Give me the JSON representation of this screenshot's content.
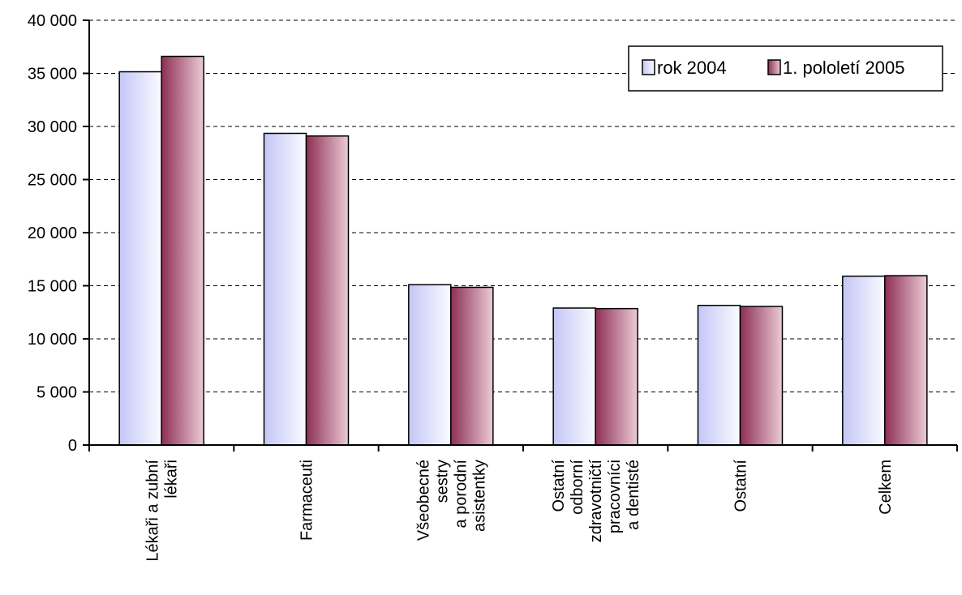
{
  "chart_data": {
    "type": "bar",
    "categories": [
      [
        "Lékaři a zubní",
        "lékaři"
      ],
      [
        "Farmaceuti"
      ],
      [
        "Všeobecné",
        "sestry",
        "a porodní",
        "asistentky"
      ],
      [
        "Ostatní",
        "odborní",
        "zdravotničtí",
        "pracovníci",
        "a dentisté"
      ],
      [
        "Ostatní"
      ],
      [
        "Celkem"
      ]
    ],
    "series": [
      {
        "name": "rok 2004",
        "values": [
          35150,
          29350,
          15100,
          12900,
          13150,
          15900
        ],
        "color_light": "#cfd0f8",
        "color_dark": "#f7f7ff"
      },
      {
        "name": "1. pololetí 2005",
        "values": [
          36600,
          29100,
          14850,
          12850,
          13050,
          15950
        ],
        "color_light": "#9b3a5e",
        "color_dark": "#e8c7d2"
      }
    ],
    "yticks": [
      "0",
      "5 000",
      "10 000",
      "15 000",
      "20 000",
      "25 000",
      "30 000",
      "35 000",
      "40 000"
    ],
    "ylim": [
      0,
      40000
    ],
    "grid": "horizontal-dashed",
    "legend_position": "top-right"
  }
}
